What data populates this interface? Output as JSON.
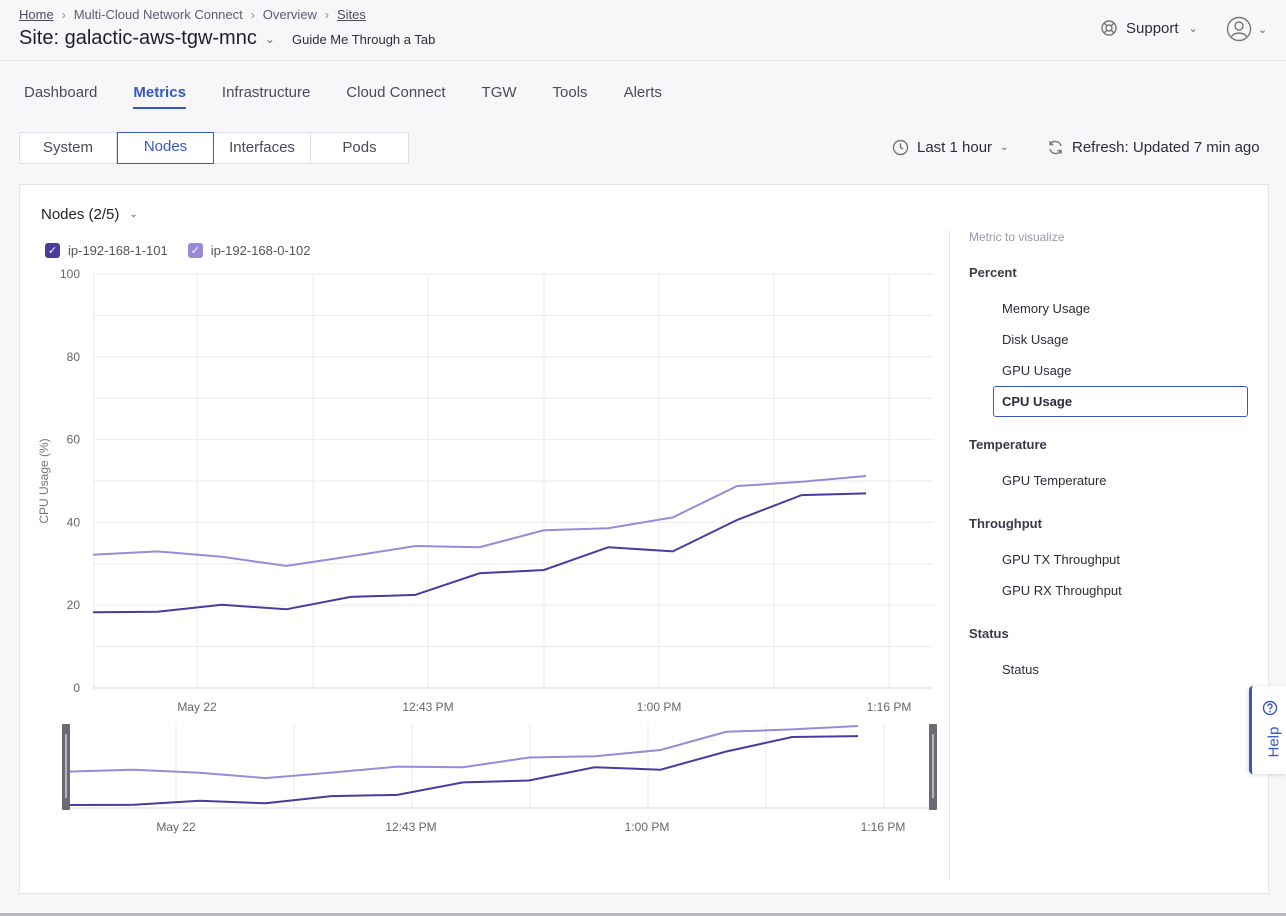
{
  "breadcrumb": {
    "items": [
      {
        "label": "Home",
        "link": true
      },
      {
        "label": "Multi-Cloud Network Connect",
        "link": false
      },
      {
        "label": "Overview",
        "link": false
      },
      {
        "label": "Sites",
        "link": true
      }
    ]
  },
  "header": {
    "site_title": "Site: galactic-aws-tgw-mnc",
    "guide_label": "Guide Me Through a Tab",
    "support_label": "Support"
  },
  "tabs": [
    "Dashboard",
    "Metrics",
    "Infrastructure",
    "Cloud Connect",
    "TGW",
    "Tools",
    "Alerts"
  ],
  "active_tab": "Metrics",
  "subtabs": [
    "System",
    "Nodes",
    "Interfaces",
    "Pods"
  ],
  "active_subtab": "Nodes",
  "time_range": "Last 1 hour",
  "refresh_label": "Refresh: Updated 7 min ago",
  "nodes_selector": "Nodes (2/5)",
  "sidebar": {
    "heading": "Metric to visualize",
    "groups": [
      {
        "name": "Percent",
        "options": [
          "Memory Usage",
          "Disk Usage",
          "GPU Usage",
          "CPU Usage"
        ]
      },
      {
        "name": "Temperature",
        "options": [
          "GPU Temperature"
        ]
      },
      {
        "name": "Throughput",
        "options": [
          "GPU TX Throughput",
          "GPU RX Throughput"
        ]
      },
      {
        "name": "Status",
        "options": [
          "Status"
        ]
      }
    ],
    "selected": "CPU Usage"
  },
  "help_label": "Help",
  "colors": {
    "accent": "#3a58c4",
    "series1": "#4b3aa0",
    "series2": "#9a8ad8"
  },
  "chart_data": {
    "type": "line",
    "ylabel": "CPU Usage (%)",
    "ylim": [
      0,
      100
    ],
    "yticks": [
      0,
      20,
      40,
      60,
      80,
      100
    ],
    "xticks": [
      "May 22",
      "12:43 PM",
      "1:00 PM",
      "1:16 PM"
    ],
    "grid": true,
    "series": [
      {
        "name": "ip-192-168-1-101",
        "color": "#4b3aa0",
        "values": [
          18.3,
          18.4,
          20.1,
          19.0,
          22.0,
          22.5,
          27.7,
          28.5,
          34.0,
          33.0,
          40.6,
          46.6,
          47.0
        ]
      },
      {
        "name": "ip-192-168-0-102",
        "color": "#9a8ad8",
        "values": [
          32.2,
          33.0,
          31.7,
          29.5,
          31.8,
          34.3,
          34.0,
          38.1,
          38.6,
          41.2,
          48.8,
          49.8,
          51.2
        ]
      }
    ]
  }
}
